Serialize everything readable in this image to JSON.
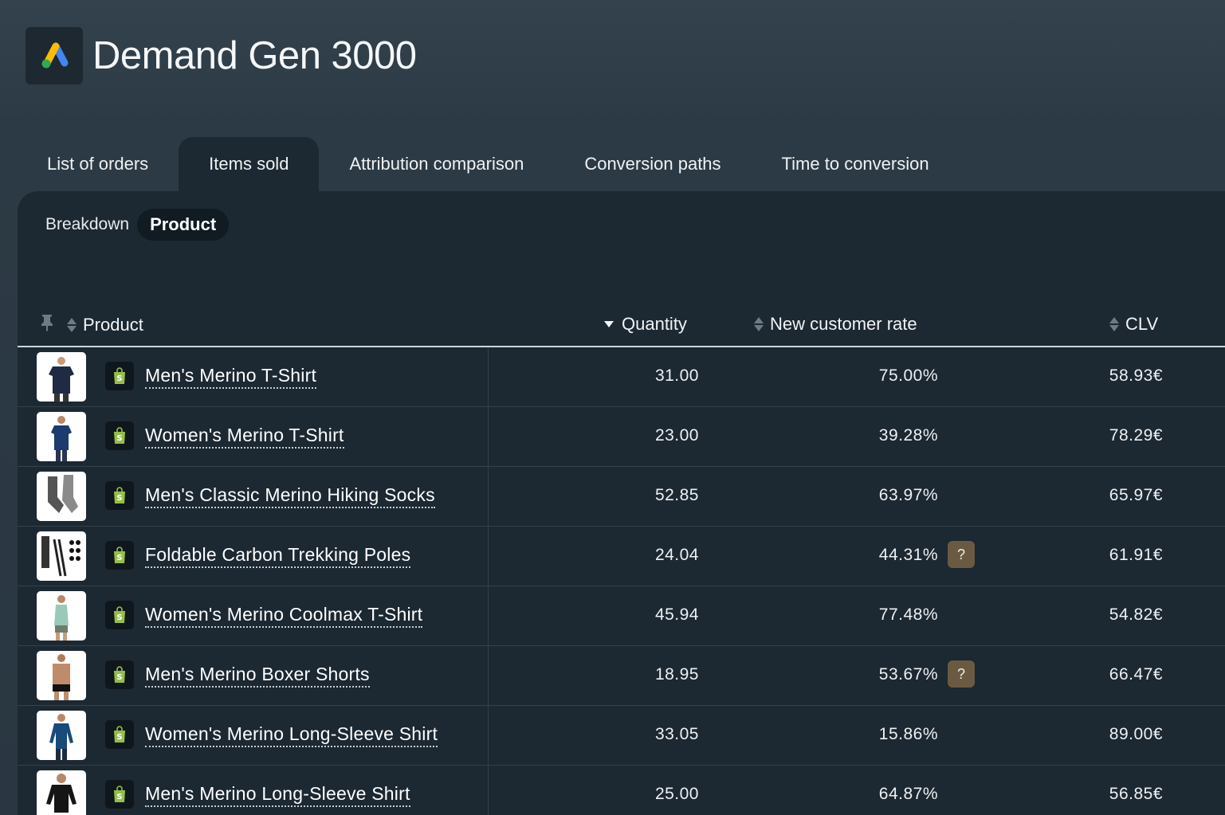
{
  "app": {
    "title": "Demand Gen 3000",
    "logo_icon": "google-ads-logo-icon",
    "logo_colors": [
      "#FBBC04",
      "#4285F4",
      "#34A853"
    ]
  },
  "tabs": [
    {
      "label": "List of orders",
      "active": false
    },
    {
      "label": "Items sold",
      "active": true
    },
    {
      "label": "Attribution comparison",
      "active": false
    },
    {
      "label": "Conversion paths",
      "active": false
    },
    {
      "label": "Time to conversion",
      "active": false
    }
  ],
  "breakdown": {
    "label": "Breakdown",
    "value": "Product"
  },
  "table": {
    "columns": {
      "product": "Product",
      "quantity": "Quantity",
      "ncr": "New customer rate",
      "clv": "CLV"
    },
    "sorted_by": "Quantity",
    "rows": [
      {
        "product": "Men's Merino T-Shirt",
        "quantity": "31.00",
        "ncr": "75.00%",
        "clv": "58.93€",
        "flag": false,
        "thumb": "mens-tshirt"
      },
      {
        "product": "Women's Merino T-Shirt",
        "quantity": "23.00",
        "ncr": "39.28%",
        "clv": "78.29€",
        "flag": false,
        "thumb": "womens-tshirt"
      },
      {
        "product": "Men's Classic Merino Hiking Socks",
        "quantity": "52.85",
        "ncr": "63.97%",
        "clv": "65.97€",
        "flag": false,
        "thumb": "socks"
      },
      {
        "product": "Foldable Carbon Trekking Poles",
        "quantity": "24.04",
        "ncr": "44.31%",
        "clv": "61.91€",
        "flag": true,
        "thumb": "poles"
      },
      {
        "product": "Women's Merino Coolmax T-Shirt",
        "quantity": "45.94",
        "ncr": "77.48%",
        "clv": "54.82€",
        "flag": false,
        "thumb": "womens-tank"
      },
      {
        "product": "Men's Merino Boxer Shorts",
        "quantity": "18.95",
        "ncr": "53.67%",
        "clv": "66.47€",
        "flag": true,
        "thumb": "boxers"
      },
      {
        "product": "Women's Merino Long-Sleeve Shirt",
        "quantity": "33.05",
        "ncr": "15.86%",
        "clv": "89.00€",
        "flag": false,
        "thumb": "womens-longsleeve"
      },
      {
        "product": "Men's Merino Long-Sleeve Shirt",
        "quantity": "25.00",
        "ncr": "64.87%",
        "clv": "56.85€",
        "flag": false,
        "thumb": "mens-longsleeve"
      }
    ],
    "flag_label": "?",
    "shop_icon": "shopify-bag-icon"
  }
}
